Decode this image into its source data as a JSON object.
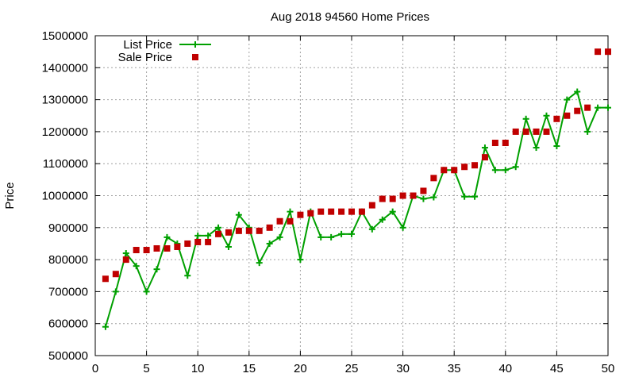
{
  "chart_data": {
    "type": "line",
    "title": "Aug 2018 94560 Home Prices",
    "xlabel": "",
    "ylabel": "Price",
    "xlim": [
      0,
      50
    ],
    "ylim": [
      500000,
      1500000
    ],
    "xticks": [
      0,
      5,
      10,
      15,
      20,
      25,
      30,
      35,
      40,
      45,
      50
    ],
    "yticks": [
      500000,
      600000,
      700000,
      800000,
      900000,
      1000000,
      1100000,
      1200000,
      1300000,
      1400000,
      1500000
    ],
    "grid": true,
    "legend_position": "top-left",
    "series": [
      {
        "name": "List Price",
        "style": "line-plus",
        "color": "#00a000",
        "x": [
          1,
          2,
          3,
          4,
          5,
          6,
          7,
          8,
          9,
          10,
          11,
          12,
          13,
          14,
          15,
          16,
          17,
          18,
          19,
          20,
          21,
          22,
          23,
          24,
          25,
          26,
          27,
          28,
          29,
          30,
          31,
          32,
          33,
          34,
          35,
          36,
          37,
          38,
          39,
          40,
          41,
          42,
          43,
          44,
          45,
          46,
          47,
          48,
          49,
          50
        ],
        "y": [
          590000,
          700000,
          820000,
          780000,
          700000,
          770000,
          870000,
          850000,
          750000,
          875000,
          875000,
          900000,
          840000,
          940000,
          900000,
          790000,
          850000,
          870000,
          950000,
          800000,
          950000,
          870000,
          870000,
          880000,
          880000,
          950000,
          895000,
          925000,
          950000,
          900000,
          1000000,
          990000,
          995000,
          1080000,
          1080000,
          997000,
          997000,
          1150000,
          1080000,
          1080000,
          1090000,
          1240000,
          1150000,
          1250000,
          1155000,
          1300000,
          1325000,
          1200000,
          1275000,
          1275000
        ]
      },
      {
        "name": "Sale Price",
        "style": "square",
        "color": "#c00000",
        "x": [
          1,
          2,
          3,
          4,
          5,
          6,
          7,
          8,
          9,
          10,
          11,
          12,
          13,
          14,
          15,
          16,
          17,
          18,
          19,
          20,
          21,
          22,
          23,
          24,
          25,
          26,
          27,
          28,
          29,
          30,
          31,
          32,
          33,
          34,
          35,
          36,
          37,
          38,
          39,
          40,
          41,
          42,
          43,
          44,
          45,
          46,
          47,
          48,
          49,
          50
        ],
        "y": [
          740000,
          755000,
          800000,
          830000,
          830000,
          835000,
          835000,
          840000,
          850000,
          855000,
          855000,
          880000,
          885000,
          890000,
          890000,
          890000,
          900000,
          920000,
          920000,
          940000,
          945000,
          950000,
          950000,
          950000,
          950000,
          950000,
          970000,
          990000,
          990000,
          1000000,
          1000000,
          1015000,
          1055000,
          1080000,
          1080000,
          1090000,
          1095000,
          1120000,
          1165000,
          1165000,
          1200000,
          1200000,
          1200000,
          1200000,
          1240000,
          1250000,
          1265000,
          1275000,
          1450000,
          1450000
        ]
      }
    ]
  }
}
